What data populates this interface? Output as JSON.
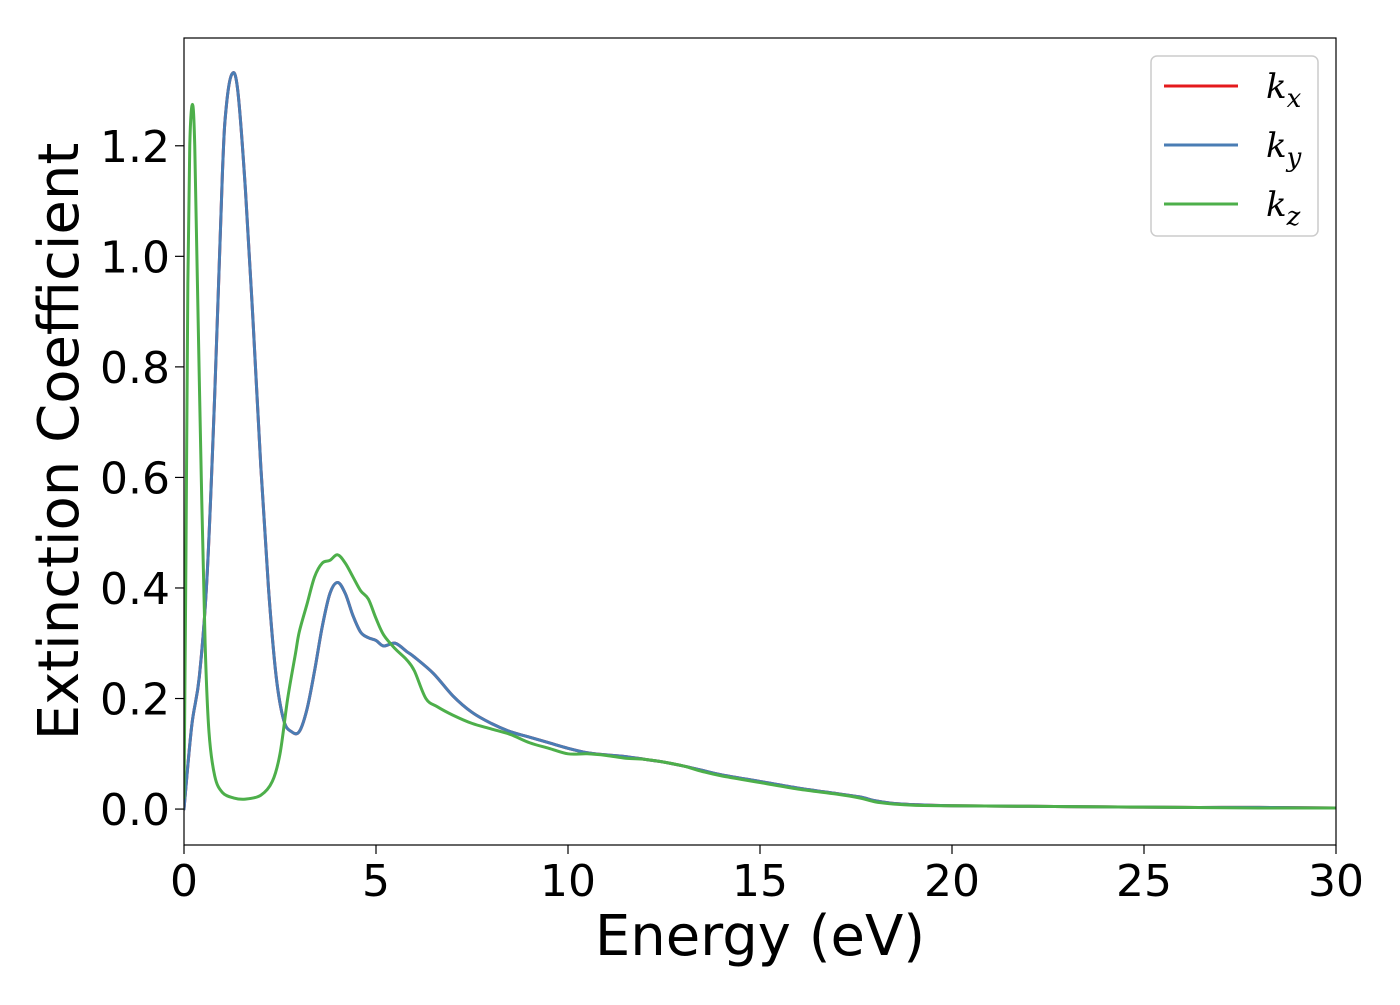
{
  "chart_data": {
    "type": "line",
    "title": "",
    "xlabel": "Energy (eV)",
    "ylabel": "Extinction Coefficient",
    "xlim": [
      0,
      30
    ],
    "ylim": [
      -0.065,
      1.395
    ],
    "xticks": [
      0,
      5,
      10,
      15,
      20,
      25,
      30
    ],
    "xtick_labels": [
      "0",
      "5",
      "10",
      "15",
      "20",
      "25",
      "30"
    ],
    "yticks": [
      0.0,
      0.2,
      0.4,
      0.6,
      0.8,
      1.0,
      1.2
    ],
    "ytick_labels": [
      "0.0",
      "0.2",
      "0.4",
      "0.6",
      "0.8",
      "1.0",
      "1.2"
    ],
    "grid": false,
    "legend": {
      "position": "top-right",
      "entries": [
        {
          "base": "k",
          "sub": "x"
        },
        {
          "base": "k",
          "sub": "y"
        },
        {
          "base": "k",
          "sub": "z"
        }
      ]
    },
    "series": [
      {
        "name": "kx",
        "color": "#e41a1c",
        "x": [
          0,
          0.2,
          0.4,
          0.6,
          0.8,
          1.0,
          1.1,
          1.25,
          1.4,
          1.6,
          1.8,
          2.0,
          2.2,
          2.4,
          2.6,
          2.8,
          3.0,
          3.2,
          3.4,
          3.6,
          3.8,
          4.0,
          4.2,
          4.4,
          4.6,
          4.8,
          5.0,
          5.2,
          5.5,
          5.8,
          6.0,
          6.5,
          7.0,
          7.5,
          8.0,
          8.5,
          9.0,
          9.5,
          10.0,
          10.5,
          11.0,
          11.5,
          12.0,
          12.5,
          13.0,
          13.5,
          14.0,
          15.0,
          16.0,
          17.0,
          17.6,
          18.0,
          18.5,
          19.0,
          20.0,
          22.0,
          24.0,
          26.0,
          28.0,
          30.0
        ],
        "values": [
          0.0,
          0.15,
          0.24,
          0.42,
          0.75,
          1.15,
          1.27,
          1.33,
          1.3,
          1.12,
          0.88,
          0.62,
          0.4,
          0.24,
          0.16,
          0.14,
          0.14,
          0.18,
          0.25,
          0.33,
          0.39,
          0.41,
          0.39,
          0.35,
          0.32,
          0.31,
          0.305,
          0.295,
          0.3,
          0.285,
          0.275,
          0.245,
          0.205,
          0.175,
          0.155,
          0.14,
          0.13,
          0.12,
          0.11,
          0.102,
          0.098,
          0.095,
          0.09,
          0.085,
          0.078,
          0.07,
          0.062,
          0.05,
          0.038,
          0.028,
          0.022,
          0.015,
          0.01,
          0.008,
          0.006,
          0.005,
          0.004,
          0.003,
          0.003,
          0.002
        ]
      },
      {
        "name": "ky",
        "color": "#4a7db4",
        "x": [
          0,
          0.2,
          0.4,
          0.6,
          0.8,
          1.0,
          1.1,
          1.25,
          1.4,
          1.6,
          1.8,
          2.0,
          2.2,
          2.4,
          2.6,
          2.8,
          3.0,
          3.2,
          3.4,
          3.6,
          3.8,
          4.0,
          4.2,
          4.4,
          4.6,
          4.8,
          5.0,
          5.2,
          5.5,
          5.8,
          6.0,
          6.5,
          7.0,
          7.5,
          8.0,
          8.5,
          9.0,
          9.5,
          10.0,
          10.5,
          11.0,
          11.5,
          12.0,
          12.5,
          13.0,
          13.5,
          14.0,
          15.0,
          16.0,
          17.0,
          17.6,
          18.0,
          18.5,
          19.0,
          20.0,
          22.0,
          24.0,
          26.0,
          28.0,
          30.0
        ],
        "values": [
          0.0,
          0.15,
          0.24,
          0.42,
          0.75,
          1.15,
          1.27,
          1.33,
          1.3,
          1.12,
          0.88,
          0.62,
          0.4,
          0.24,
          0.16,
          0.14,
          0.14,
          0.18,
          0.25,
          0.33,
          0.39,
          0.41,
          0.39,
          0.35,
          0.32,
          0.31,
          0.305,
          0.295,
          0.3,
          0.285,
          0.275,
          0.245,
          0.205,
          0.175,
          0.155,
          0.14,
          0.13,
          0.12,
          0.11,
          0.102,
          0.098,
          0.095,
          0.09,
          0.085,
          0.078,
          0.07,
          0.062,
          0.05,
          0.038,
          0.028,
          0.022,
          0.015,
          0.01,
          0.008,
          0.006,
          0.005,
          0.004,
          0.003,
          0.003,
          0.002
        ]
      },
      {
        "name": "kz",
        "color": "#4daf4a",
        "x": [
          0,
          0.05,
          0.1,
          0.15,
          0.22,
          0.28,
          0.35,
          0.45,
          0.55,
          0.65,
          0.8,
          1.0,
          1.3,
          1.6,
          2.0,
          2.3,
          2.5,
          2.7,
          2.9,
          3.0,
          3.2,
          3.4,
          3.6,
          3.8,
          4.0,
          4.2,
          4.4,
          4.6,
          4.8,
          5.0,
          5.2,
          5.5,
          5.8,
          6.0,
          6.3,
          6.6,
          7.0,
          7.5,
          8.0,
          8.5,
          9.0,
          9.5,
          10.0,
          10.5,
          11.0,
          11.5,
          12.0,
          12.5,
          13.0,
          13.5,
          14.0,
          15.0,
          16.0,
          17.0,
          17.6,
          18.0,
          18.5,
          19.0,
          20.0,
          22.0,
          24.0,
          26.0,
          28.0,
          30.0
        ],
        "values": [
          0.02,
          0.45,
          0.95,
          1.2,
          1.275,
          1.2,
          0.95,
          0.6,
          0.3,
          0.14,
          0.06,
          0.03,
          0.02,
          0.018,
          0.025,
          0.05,
          0.1,
          0.2,
          0.28,
          0.32,
          0.37,
          0.42,
          0.445,
          0.45,
          0.46,
          0.445,
          0.42,
          0.395,
          0.38,
          0.345,
          0.315,
          0.29,
          0.27,
          0.25,
          0.2,
          0.185,
          0.17,
          0.155,
          0.145,
          0.135,
          0.12,
          0.11,
          0.1,
          0.1,
          0.097,
          0.092,
          0.09,
          0.085,
          0.078,
          0.068,
          0.06,
          0.048,
          0.036,
          0.027,
          0.02,
          0.013,
          0.009,
          0.007,
          0.006,
          0.005,
          0.004,
          0.003,
          0.002,
          0.002
        ]
      }
    ]
  }
}
